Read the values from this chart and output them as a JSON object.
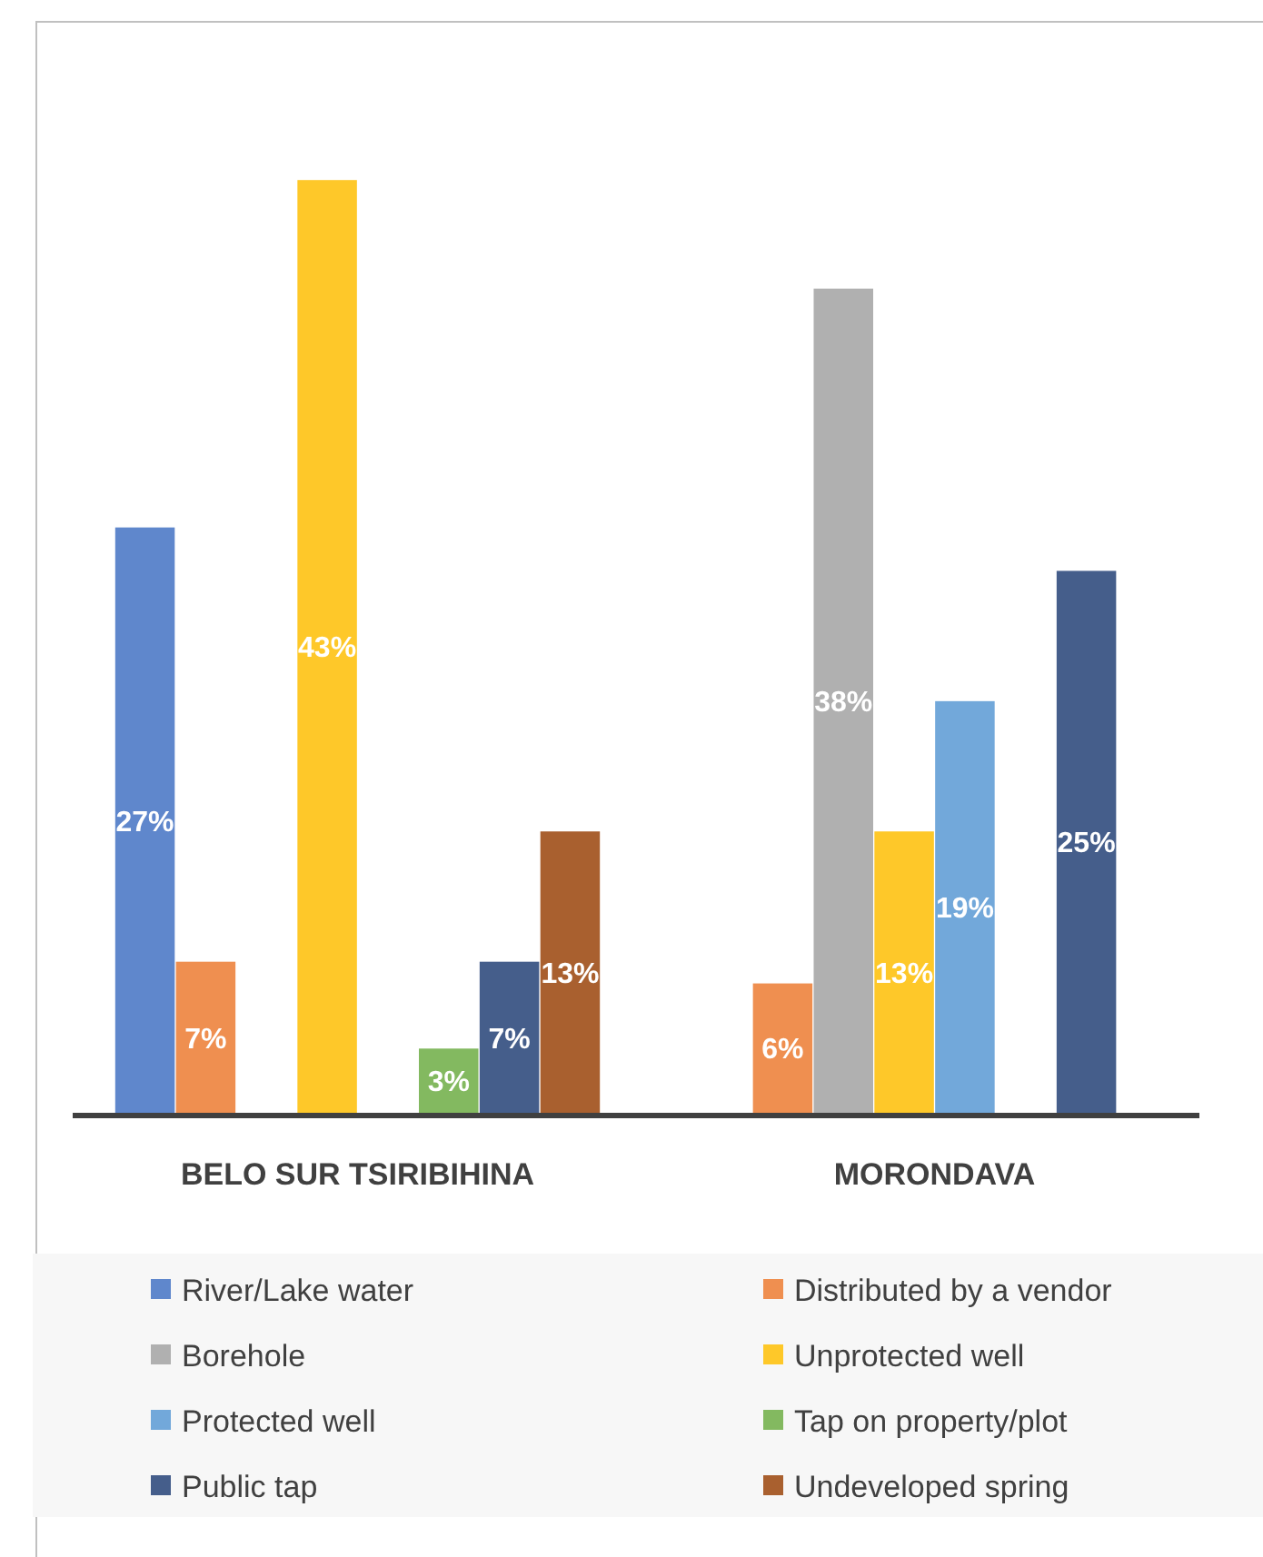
{
  "chart_data": {
    "type": "bar",
    "categories": [
      "BELO SUR TSIRIBIHINA",
      "MORONDAVA"
    ],
    "series": [
      {
        "name": "River/Lake water",
        "color": "#5f87cc",
        "values": [
          27,
          null
        ],
        "value_labels": [
          "27%",
          null
        ]
      },
      {
        "name": "Distributed by a vendor",
        "color": "#ef8f50",
        "values": [
          7,
          6
        ],
        "value_labels": [
          "7%",
          "6%"
        ]
      },
      {
        "name": "Borehole",
        "color": "#b0b0b0",
        "values": [
          null,
          38
        ],
        "value_labels": [
          null,
          "38%"
        ]
      },
      {
        "name": "Unprotected well",
        "color": "#fec829",
        "values": [
          43,
          13
        ],
        "value_labels": [
          "43%",
          "13%"
        ]
      },
      {
        "name": "Protected well",
        "color": "#72a8da",
        "values": [
          null,
          19
        ],
        "value_labels": [
          null,
          "19%"
        ]
      },
      {
        "name": "Tap on property/plot",
        "color": "#83b960",
        "values": [
          3,
          null
        ],
        "value_labels": [
          "3%",
          null
        ]
      },
      {
        "name": "Public tap",
        "color": "#455e8b",
        "values": [
          7,
          25
        ],
        "value_labels": [
          "7%",
          "25%"
        ]
      },
      {
        "name": "Undeveloped spring",
        "color": "#a9602f",
        "values": [
          13,
          null
        ],
        "value_labels": [
          "13%",
          null
        ]
      }
    ],
    "legend": "bottom"
  }
}
